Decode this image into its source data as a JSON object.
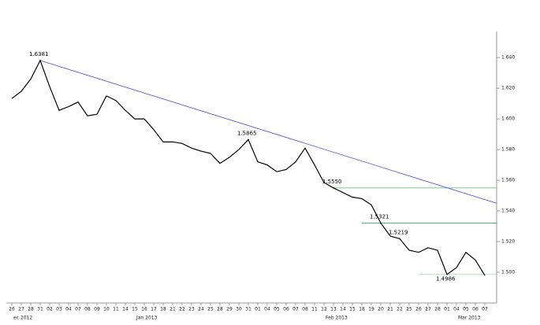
{
  "chart_data": {
    "type": "line",
    "categories": [
      "26",
      "27",
      "28",
      "31",
      "02",
      "03",
      "04",
      "07",
      "08",
      "09",
      "10",
      "11",
      "14",
      "15",
      "16",
      "17",
      "18",
      "21",
      "22",
      "23",
      "24",
      "25",
      "28",
      "29",
      "30",
      "31",
      "01",
      "04",
      "05",
      "06",
      "07",
      "08",
      "11",
      "12",
      "13",
      "14",
      "15",
      "18",
      "19",
      "20",
      "21",
      "22",
      "25",
      "26",
      "27",
      "28",
      "01",
      "04",
      "05",
      "06",
      "07"
    ],
    "month_labels": [
      {
        "label": "ec 2012",
        "at": 0
      },
      {
        "label": "Jan 2013",
        "at": 13
      },
      {
        "label": "Feb 2013",
        "at": 33
      },
      {
        "label": "Mar 2013",
        "at": 47
      }
    ],
    "series": [
      {
        "color": "#000000",
        "values": [
          1.6133,
          1.618,
          1.626,
          1.6381,
          1.621,
          1.6056,
          1.608,
          1.611,
          1.602,
          1.603,
          1.615,
          1.612,
          1.6056,
          1.6,
          1.6,
          1.593,
          1.585,
          1.585,
          1.584,
          1.581,
          1.579,
          1.5775,
          1.571,
          1.575,
          1.58,
          1.5865,
          1.572,
          1.57,
          1.5656,
          1.567,
          1.572,
          1.581,
          1.57,
          1.5585,
          1.555,
          1.552,
          1.549,
          1.548,
          1.544,
          1.5321,
          1.5236,
          1.5219,
          1.5144,
          1.513,
          1.516,
          1.5144,
          1.4986,
          1.503,
          1.513,
          1.508,
          1.498
        ]
      }
    ],
    "annotations": [
      {
        "label": "1.6381",
        "value": 1.6381,
        "at": 3
      },
      {
        "label": "1.5865",
        "value": 1.5865,
        "at": 25
      },
      {
        "label": "1.5550",
        "value": 1.555,
        "at": 34
      },
      {
        "label": "1.5321",
        "value": 1.5321,
        "at": 39
      },
      {
        "label": "1.5219",
        "value": 1.5219,
        "at": 41
      },
      {
        "label": "1.4986",
        "value": 1.4986,
        "at": 46
      }
    ],
    "trendline": {
      "color": "#4a4ad0",
      "start": 1.6381,
      "end": 1.545,
      "from": 3
    },
    "levels": [
      {
        "value": 1.555,
        "from": 34,
        "color": "#6fbf8a"
      },
      {
        "value": 1.5321,
        "from": 37,
        "color": "#3aa860"
      },
      {
        "value": 1.4986,
        "from": 43,
        "color": "#9fd4b0"
      }
    ],
    "ylim": [
      1.48,
      1.657
    ],
    "yticks": [
      {
        "value": 1.5,
        "label": "1.500"
      },
      {
        "value": 1.52,
        "label": "1.520"
      },
      {
        "value": 1.54,
        "label": "1.540"
      },
      {
        "value": 1.56,
        "label": "1.560"
      },
      {
        "value": 1.58,
        "label": "1.580"
      },
      {
        "value": 1.6,
        "label": "1.600"
      },
      {
        "value": 1.62,
        "label": "1.620"
      },
      {
        "value": 1.64,
        "label": "1.640"
      }
    ]
  }
}
